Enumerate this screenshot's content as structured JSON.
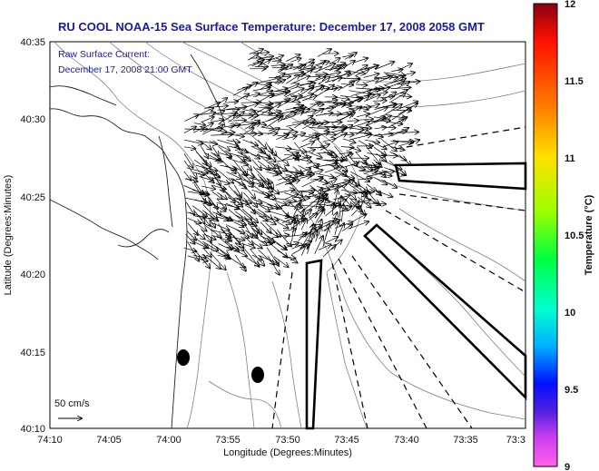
{
  "title": "RU COOL  NOAA-15  Sea Surface Temperature:  December 17, 2008 2058 GMT",
  "annotation": {
    "line1": "Raw Surface Current:",
    "line2": "December 17, 2008 21:00 GMT"
  },
  "scale": {
    "label": "50 cm/s"
  },
  "axes": {
    "xlabel": "Longitude (Degrees:Minutes)",
    "ylabel": "Latitude (Degrees:Minutes)",
    "x_ticks": [
      "74:10",
      "74:05",
      "74:00",
      "73:55",
      "73:50",
      "73:45",
      "73:40",
      "73:35",
      "73:3"
    ],
    "y_ticks": [
      "40:35",
      "40:30",
      "40:25",
      "40:20",
      "40:15",
      "40:10"
    ]
  },
  "colorbar": {
    "label": "Temperature (°C)",
    "ticks": [
      "12",
      "11.5",
      "11",
      "10.5",
      "10",
      "9.5",
      "9"
    ],
    "range": [
      9,
      12
    ]
  }
}
